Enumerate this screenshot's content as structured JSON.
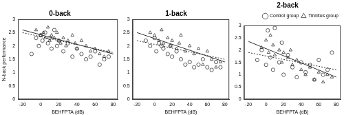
{
  "chart_data": [
    {
      "type": "scatter",
      "title": "0-back",
      "x_label": "BEHFPTA (dB)",
      "y_label": "N-back performance",
      "xlim": [
        -25,
        85
      ],
      "xticks": [
        -20,
        0,
        20,
        40,
        60,
        80
      ],
      "ylim": [
        0,
        3
      ],
      "yticks": [
        0,
        0.5,
        1,
        1.5,
        2,
        2.5,
        3
      ],
      "grid": false,
      "series": [
        {
          "name": "Control group",
          "color": "#333333",
          "marker": "circle",
          "line_style": "dotted",
          "x": [
            -10,
            -5,
            -2,
            0,
            2,
            5,
            8,
            10,
            12,
            15,
            18,
            20,
            25,
            30,
            35,
            40,
            45,
            50,
            55,
            60,
            65,
            70,
            75
          ],
          "values": [
            1.7,
            2.3,
            2.0,
            2.4,
            2.2,
            2.5,
            2.1,
            2.3,
            1.9,
            2.6,
            2.0,
            2.2,
            1.8,
            2.1,
            1.6,
            1.9,
            1.7,
            1.5,
            1.6,
            1.8,
            1.3,
            1.5,
            1.6
          ],
          "fit_x": [
            -20,
            80
          ],
          "fit_values": [
            2.5,
            1.75
          ]
        },
        {
          "name": "Tinnitus group",
          "color": "#333333",
          "marker": "triangle",
          "line_style": "solid",
          "x": [
            -5,
            0,
            3,
            5,
            8,
            10,
            12,
            15,
            18,
            20,
            22,
            25,
            28,
            30,
            35,
            38,
            40,
            45,
            50,
            55,
            60,
            65,
            70,
            75
          ],
          "values": [
            2.6,
            2.4,
            2.5,
            2.3,
            2.7,
            2.2,
            2.4,
            2.3,
            2.5,
            2.2,
            2.1,
            2.3,
            2.0,
            2.2,
            2.4,
            2.1,
            1.9,
            2.2,
            2.0,
            1.8,
            1.9,
            1.7,
            1.6,
            1.8
          ],
          "fit_x": [
            -20,
            80
          ],
          "fit_values": [
            2.6,
            1.7
          ]
        }
      ]
    },
    {
      "type": "scatter",
      "title": "1-back",
      "x_label": "BEHFPTA (dB)",
      "xlim": [
        -25,
        85
      ],
      "xticks": [
        -20,
        0,
        20,
        40,
        60,
        80
      ],
      "ylim": [
        0,
        3
      ],
      "yticks": [
        0,
        0.5,
        1,
        1.5,
        2,
        2.5,
        3
      ],
      "grid": false,
      "series": [
        {
          "name": "Control group",
          "color": "#333333",
          "marker": "circle",
          "line_style": "dotted",
          "x": [
            -10,
            -5,
            0,
            2,
            5,
            8,
            10,
            15,
            18,
            20,
            25,
            30,
            35,
            40,
            45,
            50,
            55,
            60,
            65,
            70,
            75
          ],
          "values": [
            2.2,
            2.0,
            2.3,
            1.8,
            2.1,
            2.0,
            1.9,
            1.7,
            2.0,
            1.6,
            1.8,
            1.5,
            1.3,
            1.4,
            1.2,
            1.3,
            1.5,
            1.2,
            1.1,
            1.4,
            1.2
          ],
          "fit_x": [
            -20,
            80
          ],
          "fit_values": [
            2.2,
            1.5
          ]
        },
        {
          "name": "Tinnitus group",
          "color": "#333333",
          "marker": "triangle",
          "line_style": "solid",
          "x": [
            -5,
            0,
            5,
            8,
            10,
            15,
            18,
            20,
            25,
            28,
            30,
            35,
            40,
            45,
            50,
            55,
            60,
            65,
            70,
            75
          ],
          "values": [
            2.5,
            2.4,
            2.2,
            2.6,
            2.1,
            2.3,
            2.0,
            2.2,
            1.9,
            2.1,
            2.4,
            1.8,
            2.0,
            1.7,
            1.9,
            1.3,
            1.8,
            1.5,
            1.2,
            1.4
          ],
          "fit_x": [
            -20,
            80
          ],
          "fit_values": [
            2.5,
            1.4
          ]
        }
      ]
    },
    {
      "type": "scatter",
      "title": "2-back",
      "x_label": "BEHFPTA (dB)",
      "xlim": [
        -25,
        85
      ],
      "xticks": [
        -20,
        0,
        20,
        40,
        60,
        80
      ],
      "ylim": [
        0,
        3
      ],
      "yticks": [
        0,
        0.5,
        1,
        1.5,
        2,
        2.5,
        3
      ],
      "grid": false,
      "legend": "upper right",
      "series": [
        {
          "name": "Control group",
          "color": "#333333",
          "marker": "circle",
          "line_style": "dotted",
          "x": [
            -10,
            -5,
            0,
            2,
            5,
            8,
            10,
            15,
            18,
            20,
            25,
            30,
            35,
            40,
            45,
            50,
            55,
            60,
            65,
            70,
            75
          ],
          "values": [
            1.6,
            2.0,
            1.4,
            2.8,
            1.7,
            1.2,
            2.9,
            1.5,
            2.3,
            1.0,
            1.8,
            1.3,
            0.9,
            1.5,
            1.1,
            1.4,
            0.8,
            1.6,
            1.0,
            1.2,
            1.9
          ],
          "fit_x": [
            -20,
            80
          ],
          "fit_values": [
            1.9,
            1.2
          ]
        },
        {
          "name": "Tinnitus group",
          "color": "#333333",
          "marker": "triangle",
          "line_style": "solid",
          "x": [
            -5,
            0,
            3,
            5,
            8,
            10,
            15,
            18,
            20,
            25,
            28,
            30,
            35,
            40,
            45,
            50,
            55,
            60,
            65,
            70,
            75
          ],
          "values": [
            2.1,
            2.4,
            1.9,
            2.6,
            2.2,
            1.8,
            2.0,
            1.5,
            1.9,
            1.7,
            2.0,
            1.4,
            1.6,
            1.2,
            1.0,
            1.3,
            0.8,
            1.1,
            0.7,
            1.0,
            0.9
          ],
          "fit_x": [
            -20,
            80
          ],
          "fit_values": [
            2.35,
            0.9
          ]
        }
      ]
    }
  ]
}
